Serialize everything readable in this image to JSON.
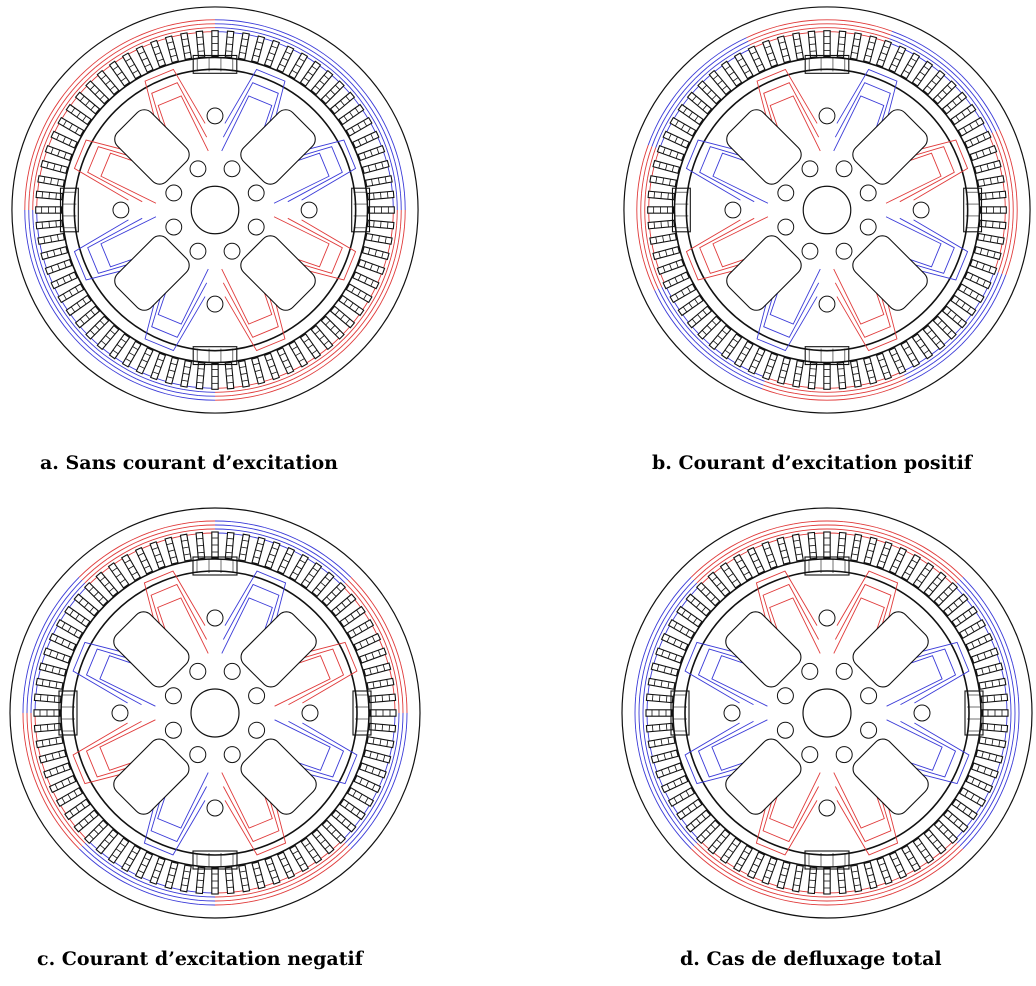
{
  "colors": {
    "flux_positive": "#e03a3a",
    "flux_negative": "#3a3ad8",
    "outline": "#111111",
    "background": "#ffffff"
  },
  "panels": [
    {
      "id": "a",
      "caption": "a. Sans courant d’excitation"
    },
    {
      "id": "b",
      "caption": "b. Courant d’excitation positif"
    },
    {
      "id": "c",
      "caption": "c. Courant d’excitation negatif"
    },
    {
      "id": "d",
      "caption": "d. Cas de defluxage total"
    }
  ]
}
